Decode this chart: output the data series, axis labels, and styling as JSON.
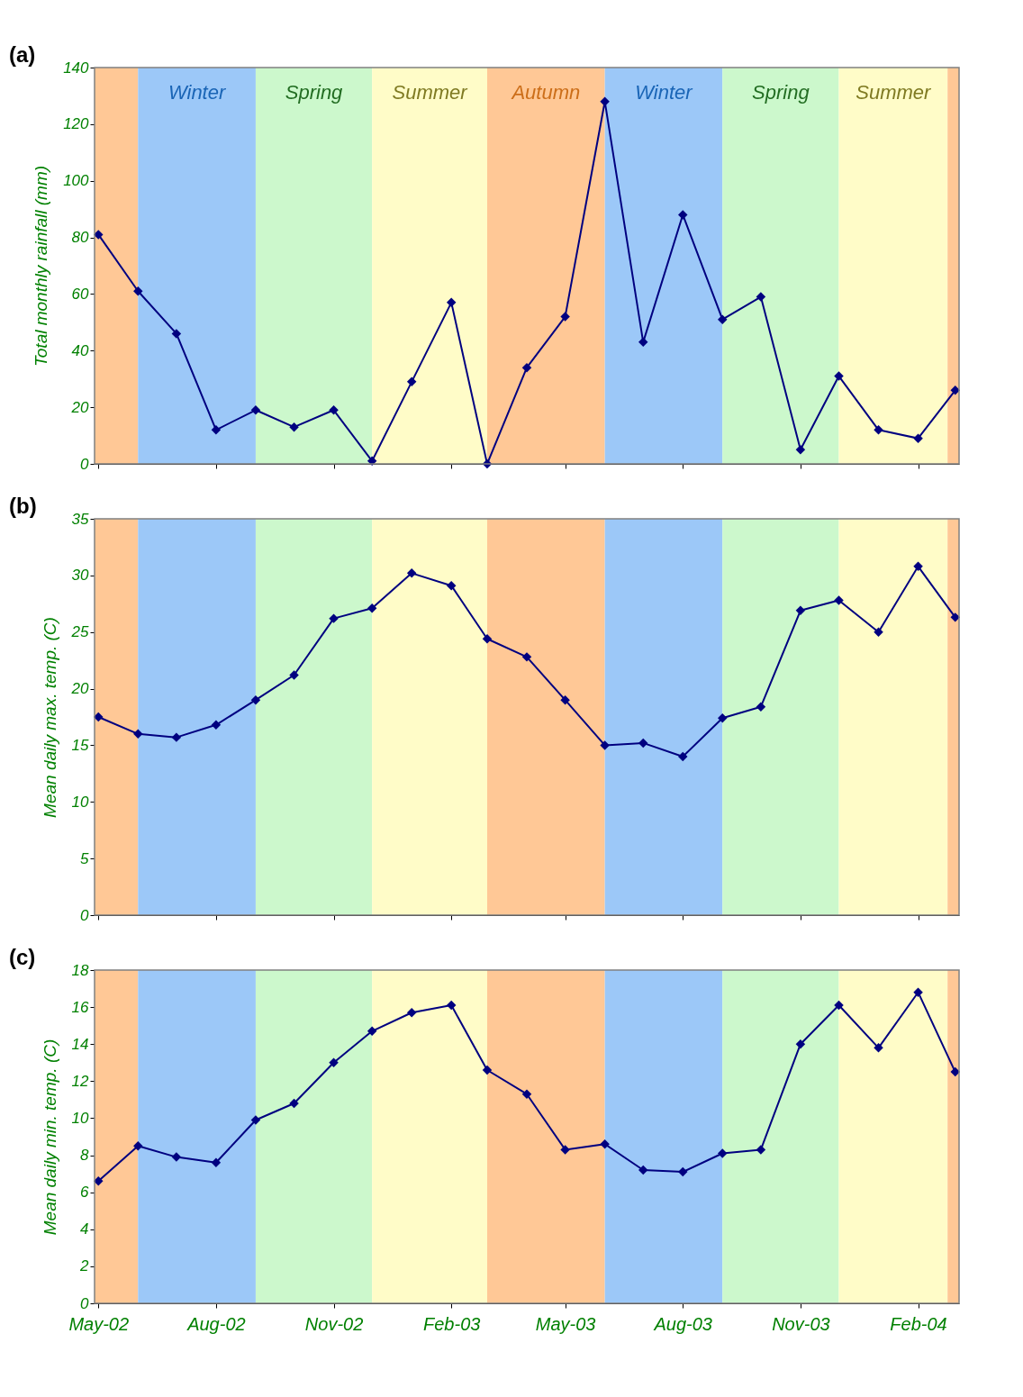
{
  "chart_data": [
    {
      "type": "line",
      "title": "(a)",
      "ylabel": "Total monthly rainfall (mm)",
      "tick_labels": "y",
      "marker": "diamond",
      "line_style": "solid",
      "grid": false,
      "x": [
        "2002-05",
        "2002-06",
        "2002-07",
        "2002-08",
        "2002-09",
        "2002-10",
        "2002-11",
        "2002-12",
        "2003-01",
        "2003-02",
        "2003-03",
        "2003-04",
        "2003-05",
        "2003-06",
        "2003-07",
        "2003-08",
        "2003-09",
        "2003-10",
        "2003-11",
        "2003-12",
        "2004-01",
        "2004-02",
        "2004-03"
      ],
      "series": [
        {
          "color": "#000080",
          "values": [
            81,
            61,
            46,
            12,
            19,
            13,
            19,
            1,
            29,
            57,
            0,
            34,
            52,
            128,
            43,
            88,
            51,
            59,
            5,
            31,
            12,
            9,
            26
          ]
        }
      ],
      "xlim": [
        "2002-04-28",
        "2004-03-04"
      ],
      "ylim": [
        0,
        140
      ],
      "yticks": [
        0,
        20,
        40,
        60,
        80,
        100,
        120,
        140
      ],
      "xticks": [
        {
          "value": "2002-05-01",
          "label": null
        },
        {
          "value": "2002-08-01",
          "label": null
        },
        {
          "value": "2002-11-01",
          "label": null
        },
        {
          "value": "2003-02-01",
          "label": null
        },
        {
          "value": "2003-05-01",
          "label": null
        },
        {
          "value": "2003-08-01",
          "label": null
        },
        {
          "value": "2003-11-01",
          "label": null
        },
        {
          "value": "2004-02-01",
          "label": null
        }
      ],
      "bands": [
        {
          "axis": "x",
          "from": "2002-04-28",
          "to": "2002-06-01",
          "label": null,
          "color": "#ffc896"
        },
        {
          "axis": "x",
          "from": "2002-06-01",
          "to": "2002-09-01",
          "label": "Winter",
          "color": "#9cc8f8"
        },
        {
          "axis": "x",
          "from": "2002-09-01",
          "to": "2002-12-01",
          "label": "Spring",
          "color": "#ccf8cc"
        },
        {
          "axis": "x",
          "from": "2002-12-01",
          "to": "2003-03-01",
          "label": "Summer",
          "color": "#fffcc8"
        },
        {
          "axis": "x",
          "from": "2003-03-01",
          "to": "2003-06-01",
          "label": "Autumn",
          "color": "#ffc896"
        },
        {
          "axis": "x",
          "from": "2003-06-01",
          "to": "2003-09-01",
          "label": "Winter",
          "color": "#9cc8f8"
        },
        {
          "axis": "x",
          "from": "2003-09-01",
          "to": "2003-12-01",
          "label": "Spring",
          "color": "#ccf8cc"
        },
        {
          "axis": "x",
          "from": "2003-12-01",
          "to": "2004-02-24",
          "label": "Summer",
          "color": "#fffcc8"
        },
        {
          "axis": "x",
          "from": "2004-02-24",
          "to": "2004-03-04",
          "label": null,
          "color": "#ffc896"
        }
      ]
    },
    {
      "type": "line",
      "title": "(b)",
      "ylabel": "Mean daily max. temp. (C)",
      "tick_labels": "y",
      "marker": "diamond",
      "line_style": "solid",
      "grid": false,
      "x": [
        "2002-05",
        "2002-06",
        "2002-07",
        "2002-08",
        "2002-09",
        "2002-10",
        "2002-11",
        "2002-12",
        "2003-01",
        "2003-02",
        "2003-03",
        "2003-04",
        "2003-05",
        "2003-06",
        "2003-07",
        "2003-08",
        "2003-09",
        "2003-10",
        "2003-11",
        "2003-12",
        "2004-01",
        "2004-02",
        "2004-03"
      ],
      "series": [
        {
          "color": "#000080",
          "values": [
            17.5,
            16,
            15.7,
            16.8,
            19,
            21.2,
            26.2,
            27.1,
            30.2,
            29.1,
            24.4,
            22.8,
            19,
            15,
            15.2,
            14,
            17.4,
            18.4,
            26.9,
            27.8,
            25,
            30.8,
            26.3
          ]
        }
      ],
      "xlim": [
        "2002-04-28",
        "2004-03-04"
      ],
      "ylim": [
        0,
        35
      ],
      "yticks": [
        0,
        5,
        10,
        15,
        20,
        25,
        30,
        35
      ],
      "xticks": [
        {
          "value": "2002-05-01",
          "label": null
        },
        {
          "value": "2002-08-01",
          "label": null
        },
        {
          "value": "2002-11-01",
          "label": null
        },
        {
          "value": "2003-02-01",
          "label": null
        },
        {
          "value": "2003-05-01",
          "label": null
        },
        {
          "value": "2003-08-01",
          "label": null
        },
        {
          "value": "2003-11-01",
          "label": null
        },
        {
          "value": "2004-02-01",
          "label": null
        }
      ],
      "bands": [
        {
          "axis": "x",
          "from": "2002-04-28",
          "to": "2002-06-01",
          "label": null,
          "color": "#ffc896"
        },
        {
          "axis": "x",
          "from": "2002-06-01",
          "to": "2002-09-01",
          "label": null,
          "color": "#9cc8f8"
        },
        {
          "axis": "x",
          "from": "2002-09-01",
          "to": "2002-12-01",
          "label": null,
          "color": "#ccf8cc"
        },
        {
          "axis": "x",
          "from": "2002-12-01",
          "to": "2003-03-01",
          "label": null,
          "color": "#fffcc8"
        },
        {
          "axis": "x",
          "from": "2003-03-01",
          "to": "2003-06-01",
          "label": null,
          "color": "#ffc896"
        },
        {
          "axis": "x",
          "from": "2003-06-01",
          "to": "2003-09-01",
          "label": null,
          "color": "#9cc8f8"
        },
        {
          "axis": "x",
          "from": "2003-09-01",
          "to": "2003-12-01",
          "label": null,
          "color": "#ccf8cc"
        },
        {
          "axis": "x",
          "from": "2003-12-01",
          "to": "2004-02-24",
          "label": null,
          "color": "#fffcc8"
        },
        {
          "axis": "x",
          "from": "2004-02-24",
          "to": "2004-03-04",
          "label": null,
          "color": "#ffc896"
        }
      ]
    },
    {
      "type": "line",
      "title": "(c)",
      "ylabel": "Mean daily min. temp. (C)",
      "marker": "diamond",
      "line_style": "solid",
      "grid": false,
      "x": [
        "2002-05",
        "2002-06",
        "2002-07",
        "2002-08",
        "2002-09",
        "2002-10",
        "2002-11",
        "2002-12",
        "2003-01",
        "2003-02",
        "2003-03",
        "2003-04",
        "2003-05",
        "2003-06",
        "2003-07",
        "2003-08",
        "2003-09",
        "2003-10",
        "2003-11",
        "2003-12",
        "2004-01",
        "2004-02",
        "2004-03"
      ],
      "series": [
        {
          "color": "#000080",
          "values": [
            6.6,
            8.5,
            7.9,
            7.6,
            9.9,
            10.8,
            13,
            14.7,
            15.7,
            16.1,
            12.6,
            11.3,
            8.3,
            8.6,
            7.2,
            7.1,
            8.1,
            8.3,
            14,
            16.1,
            13.8,
            16.8,
            12.5
          ]
        }
      ],
      "xlim": [
        "2002-04-28",
        "2004-03-04"
      ],
      "ylim": [
        0,
        18
      ],
      "yticks": [
        0,
        2,
        4,
        6,
        8,
        10,
        12,
        14,
        16,
        18
      ],
      "xticks": [
        {
          "value": "2002-05-01",
          "label": "May-02"
        },
        {
          "value": "2002-08-01",
          "label": "Aug-02"
        },
        {
          "value": "2002-11-01",
          "label": "Nov-02"
        },
        {
          "value": "2003-02-01",
          "label": "Feb-03"
        },
        {
          "value": "2003-05-01",
          "label": "May-03"
        },
        {
          "value": "2003-08-01",
          "label": "Aug-03"
        },
        {
          "value": "2003-11-01",
          "label": "Nov-03"
        },
        {
          "value": "2004-02-01",
          "label": "Feb-04"
        }
      ],
      "bands": [
        {
          "axis": "x",
          "from": "2002-04-28",
          "to": "2002-06-01",
          "label": null,
          "color": "#ffc896"
        },
        {
          "axis": "x",
          "from": "2002-06-01",
          "to": "2002-09-01",
          "label": null,
          "color": "#9cc8f8"
        },
        {
          "axis": "x",
          "from": "2002-09-01",
          "to": "2002-12-01",
          "label": null,
          "color": "#ccf8cc"
        },
        {
          "axis": "x",
          "from": "2002-12-01",
          "to": "2003-03-01",
          "label": null,
          "color": "#fffcc8"
        },
        {
          "axis": "x",
          "from": "2003-03-01",
          "to": "2003-06-01",
          "label": null,
          "color": "#ffc896"
        },
        {
          "axis": "x",
          "from": "2003-06-01",
          "to": "2003-09-01",
          "label": null,
          "color": "#9cc8f8"
        },
        {
          "axis": "x",
          "from": "2003-09-01",
          "to": "2003-12-01",
          "label": null,
          "color": "#ccf8cc"
        },
        {
          "axis": "x",
          "from": "2003-12-01",
          "to": "2004-02-24",
          "label": null,
          "color": "#fffcc8"
        },
        {
          "axis": "x",
          "from": "2004-02-24",
          "to": "2004-03-04",
          "label": null,
          "color": "#ffc896"
        }
      ]
    }
  ]
}
